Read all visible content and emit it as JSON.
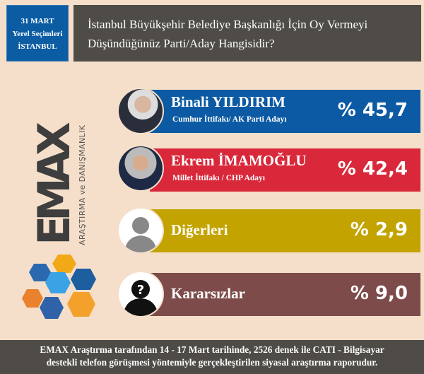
{
  "badge": {
    "line1": "31 MART",
    "line2": "Yerel Seçimleri",
    "line3": "İSTANBUL"
  },
  "question": {
    "line1": "İstanbul Büyükşehir Belediye Başkanlığı İçin Oy Vermeyi",
    "line2": "Düşündüğünüz Parti/Aday Hangisidir?"
  },
  "logo": {
    "brand": "EMAX",
    "tagline": "ARAŞTIRMA ve DANIŞMANLIK"
  },
  "results": [
    {
      "name": "Binali YILDIRIM",
      "sub": "Cumhur İttifakı/ AK Parti Adayı",
      "pct": "% 45,7",
      "value": 45.7,
      "color": "#0c5aa3"
    },
    {
      "name": "Ekrem İMAMOĞLU",
      "sub": "Millet İttifakı / CHP Adayı",
      "pct": "% 42,4",
      "value": 42.4,
      "color": "#d9283a"
    },
    {
      "name": "Diğerleri",
      "pct": "% 2,9",
      "value": 2.9,
      "color": "#c3a300"
    },
    {
      "name": "Kararsızlar",
      "pct": "% 9,0",
      "value": 9.0,
      "color": "#7d4b4a"
    }
  ],
  "footer": {
    "line1": "EMAX Araştırma tarafından 14 - 17 Mart tarihinde, 2526 denek ile CATI - Bilgisayar",
    "line2": "destekli telefon görüşmesi yöntemiyle gerçekleştirilen siyasal araştırma raporudur."
  }
}
